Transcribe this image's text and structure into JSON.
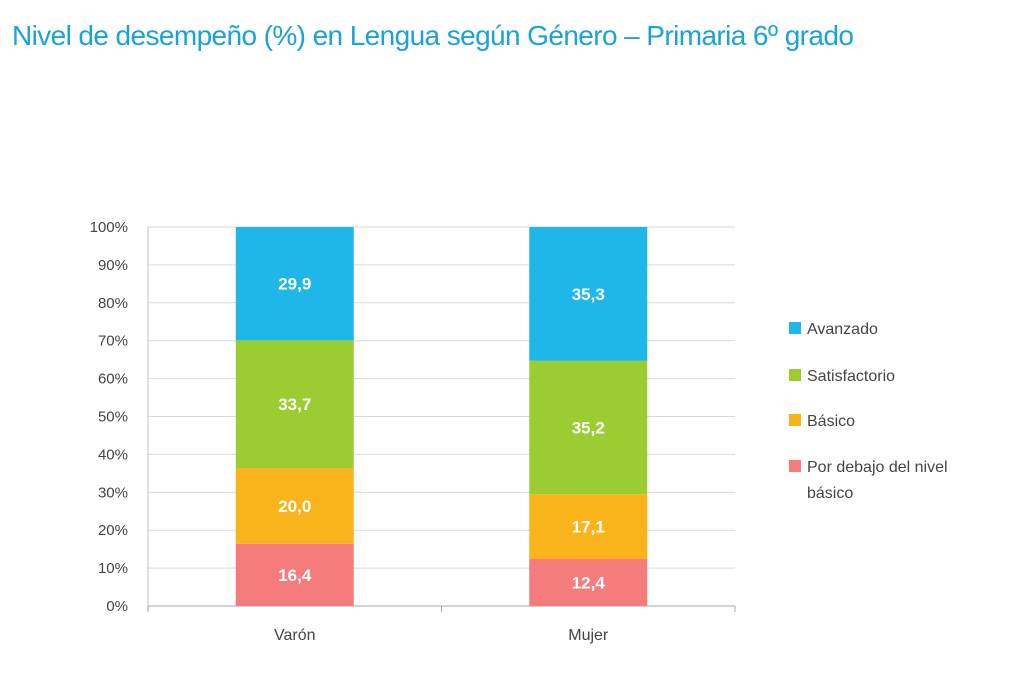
{
  "chart_data": {
    "type": "bar",
    "stacked": true,
    "title": "Nivel de desempeño (%) en Lengua según Género  – Primaria 6º grado",
    "categories": [
      "Varón",
      "Mujer"
    ],
    "series": [
      {
        "name": "Por debajo del nivel básico",
        "values": [
          16.4,
          12.4
        ],
        "labels": [
          "16,4",
          "12,4"
        ],
        "color": "#f47c7c"
      },
      {
        "name": "Básico",
        "values": [
          20.0,
          17.1
        ],
        "labels": [
          "20,0",
          "17,1"
        ],
        "color": "#f9b31b"
      },
      {
        "name": "Satisfactorio",
        "values": [
          33.7,
          35.2
        ],
        "labels": [
          "33,7",
          "35,2"
        ],
        "color": "#9acd32"
      },
      {
        "name": "Avanzado",
        "values": [
          29.9,
          35.3
        ],
        "labels": [
          "29,9",
          "35,3"
        ],
        "color": "#1fb6ea"
      }
    ],
    "yticks": [
      "0%",
      "10%",
      "20%",
      "30%",
      "40%",
      "50%",
      "60%",
      "70%",
      "80%",
      "90%",
      "100%"
    ],
    "ylim": [
      0,
      100
    ],
    "grid": true,
    "legend": {
      "position": "right",
      "items": [
        {
          "lines": [
            "Avanzado"
          ],
          "color": "#1fb6ea"
        },
        {
          "lines": [
            "Satisfactorio"
          ],
          "color": "#9acd32"
        },
        {
          "lines": [
            "Básico"
          ],
          "color": "#f9b31b"
        },
        {
          "lines": [
            "Por debajo del nivel",
            "básico"
          ],
          "color": "#f47c7c"
        }
      ]
    }
  }
}
